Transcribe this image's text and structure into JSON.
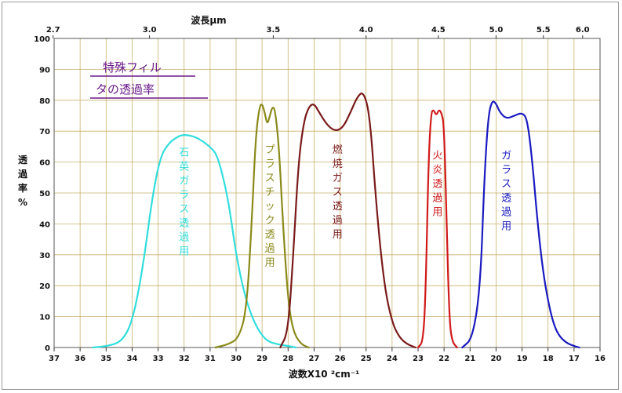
{
  "chart_data": {
    "type": "line",
    "title_lines": [
      "特殊フィル",
      "タの透過率"
    ],
    "title_color": "#6a1a8a",
    "xlabel": "波数X10 ²cm⁻¹",
    "ylabel_chars": [
      "透",
      "過",
      "率",
      "%"
    ],
    "top_axis_label": "波長μm",
    "xlim": [
      37,
      16
    ],
    "ylim": [
      0,
      100
    ],
    "grid": true,
    "x_ticks": [
      "37",
      "36",
      "35",
      "34",
      "33",
      "32",
      "31",
      "30",
      "29",
      "28",
      "27",
      "26",
      "25",
      "24",
      "23",
      "22",
      "21",
      "20",
      "19",
      "18",
      "17",
      "16"
    ],
    "y_ticks": [
      "0",
      "10",
      "20",
      "30",
      "40",
      "50",
      "60",
      "70",
      "80",
      "90",
      "100"
    ],
    "top_ticks": [
      {
        "label": "2.7",
        "wavenumber": 37.04
      },
      {
        "label": "3.0",
        "wavenumber": 33.33
      },
      {
        "label": "3.5",
        "wavenumber": 28.57
      },
      {
        "label": "4.0",
        "wavenumber": 25.0
      },
      {
        "label": "4.5",
        "wavenumber": 22.22
      },
      {
        "label": "5.0",
        "wavenumber": 20.0
      },
      {
        "label": "5.5",
        "wavenumber": 18.18
      },
      {
        "label": "6.0",
        "wavenumber": 16.67
      }
    ],
    "series": [
      {
        "name": "石英ガラス透過用",
        "color": "#33dddd",
        "label_chars": [
          "石",
          "英",
          "ガ",
          "ラ",
          "ス",
          "透",
          "過",
          "用"
        ],
        "label_x": 32.0,
        "label_y": 62,
        "x": [
          35.5,
          34.9,
          34.4,
          34.0,
          33.6,
          33.2,
          32.9,
          32.6,
          32.3,
          32.0,
          31.5,
          31.0,
          30.7,
          30.3,
          30.0,
          29.7,
          29.4,
          29.1,
          28.8,
          28.4,
          28.0,
          27.7
        ],
        "y": [
          0,
          0.5,
          2,
          8,
          25,
          50,
          62,
          66,
          68,
          69,
          68,
          65,
          62,
          48,
          30,
          18,
          10,
          5,
          2,
          1,
          0.5,
          0
        ]
      },
      {
        "name": "プラスチック透過用",
        "color": "#8a8a1a",
        "label_chars": [
          "プ",
          "ラ",
          "ス",
          "チ",
          "ッ",
          "ク",
          "透",
          "過",
          "用"
        ],
        "label_x": 28.7,
        "label_y": 63,
        "x": [
          30.8,
          30.3,
          29.9,
          29.6,
          29.4,
          29.25,
          29.1,
          29.0,
          28.9,
          28.8,
          28.7,
          28.6,
          28.5,
          28.35,
          28.2,
          28.0,
          27.8,
          27.5,
          27.2
        ],
        "y": [
          0,
          1,
          3,
          12,
          40,
          68,
          78,
          79,
          76,
          72,
          75,
          78,
          77,
          65,
          40,
          15,
          5,
          1,
          0
        ]
      },
      {
        "name": "燃焼ガス透過用",
        "color": "#7a1a1a",
        "label_chars": [
          "燃",
          "焼",
          "ガ",
          "ス",
          "透",
          "過",
          "用"
        ],
        "label_x": 26.1,
        "label_y": 63,
        "x": [
          28.3,
          28.0,
          27.8,
          27.6,
          27.4,
          27.2,
          27.0,
          26.8,
          26.5,
          26.2,
          25.9,
          25.6,
          25.35,
          25.1,
          24.85,
          24.6,
          24.3,
          24.0,
          23.7,
          23.4,
          23.1
        ],
        "y": [
          0,
          5,
          30,
          60,
          73,
          78,
          79,
          76,
          72,
          70,
          71,
          76,
          81,
          83,
          75,
          45,
          20,
          8,
          3,
          1,
          0
        ]
      },
      {
        "name": "火炎透過用",
        "color": "#d01a1a",
        "label_chars": [
          "火",
          "炎",
          "透",
          "過",
          "用"
        ],
        "label_x": 22.25,
        "label_y": 61,
        "x": [
          23.0,
          22.8,
          22.7,
          22.6,
          22.5,
          22.4,
          22.3,
          22.2,
          22.1,
          22.0,
          21.9,
          21.8,
          21.7,
          21.5
        ],
        "y": [
          0,
          2,
          20,
          60,
          76,
          77,
          75,
          77,
          76,
          72,
          40,
          10,
          2,
          0
        ]
      },
      {
        "name": "ガラス透過用",
        "color": "#1a1ac0",
        "label_chars": [
          "ガ",
          "ラ",
          "ス",
          "透",
          "過",
          "用"
        ],
        "label_x": 19.6,
        "label_y": 61,
        "x": [
          21.3,
          20.9,
          20.6,
          20.45,
          20.3,
          20.15,
          20.0,
          19.85,
          19.6,
          19.3,
          19.0,
          18.8,
          18.6,
          18.4,
          18.2,
          18.0,
          17.8,
          17.6,
          17.3,
          17.0,
          16.8
        ],
        "y": [
          0,
          3,
          20,
          55,
          75,
          80,
          79,
          76,
          74,
          75,
          76,
          74,
          60,
          40,
          25,
          15,
          8,
          4,
          1.5,
          0.5,
          0
        ]
      }
    ]
  }
}
